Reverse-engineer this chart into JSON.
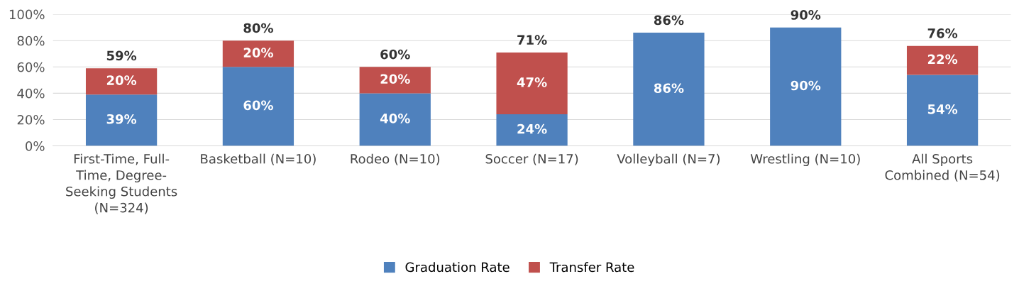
{
  "chart_data": {
    "type": "bar",
    "stacked": true,
    "categories": [
      "First-Time, Full-\nTime, Degree-\nSeeking Students\n(N=324)",
      "Basketball (N=10)",
      "Rodeo (N=10)",
      "Soccer (N=17)",
      "Volleyball (N=7)",
      "Wrestling (N=10)",
      "All Sports\nCombined (N=54)"
    ],
    "series": [
      {
        "name": "Graduation Rate",
        "color": "#4f81bd",
        "values": [
          39,
          60,
          40,
          24,
          86,
          90,
          54
        ],
        "value_labels": [
          "39%",
          "60%",
          "40%",
          "24%",
          "86%",
          "90%",
          "54%"
        ]
      },
      {
        "name": "Transfer Rate",
        "color": "#c0504d",
        "values": [
          20,
          20,
          20,
          47,
          null,
          null,
          22
        ],
        "value_labels": [
          "20%",
          "20%",
          "20%",
          "47%",
          null,
          null,
          "22%"
        ]
      }
    ],
    "totals": [
      "59%",
      "80%",
      "60%",
      "71%",
      "86%",
      "90%",
      "76%"
    ],
    "ylim": [
      0,
      100
    ],
    "yticks": [
      {
        "value": 0,
        "label": "0%"
      },
      {
        "value": 20,
        "label": "20%"
      },
      {
        "value": 40,
        "label": "40%"
      },
      {
        "value": 60,
        "label": "60%"
      },
      {
        "value": 80,
        "label": "80%"
      },
      {
        "value": 100,
        "label": "100%"
      }
    ],
    "grid": "y",
    "legend": "bottom"
  }
}
